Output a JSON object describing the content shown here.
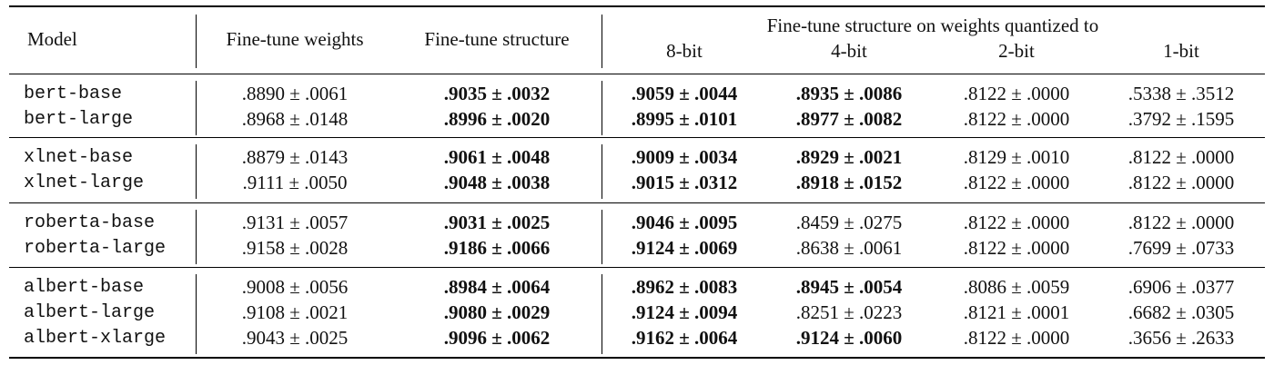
{
  "header": {
    "model": "Model",
    "finetune_weights": "Fine-tune weights",
    "finetune_structure": "Fine-tune structure",
    "quantized_group": "Fine-tune structure on weights quantized to",
    "bits": [
      "8-bit",
      "4-bit",
      "2-bit",
      "1-bit"
    ]
  },
  "groups": [
    [
      {
        "model": "bert-base",
        "w": ".8890 ± .0061",
        "s": ".9035 ± .0032",
        "q8": ".9059 ± .0044",
        "q4": ".8935 ± .0086",
        "q2": ".8122 ± .0000",
        "q1": ".5338 ± .3512",
        "bold": [
          "s",
          "q8",
          "q4"
        ]
      },
      {
        "model": "bert-large",
        "w": ".8968 ± .0148",
        "s": ".8996 ± .0020",
        "q8": ".8995 ± .0101",
        "q4": ".8977 ± .0082",
        "q2": ".8122 ± .0000",
        "q1": ".3792 ± .1595",
        "bold": [
          "s",
          "q8",
          "q4"
        ]
      }
    ],
    [
      {
        "model": "xlnet-base",
        "w": ".8879 ± .0143",
        "s": ".9061 ± .0048",
        "q8": ".9009 ± .0034",
        "q4": ".8929 ± .0021",
        "q2": ".8129 ± .0010",
        "q1": ".8122 ± .0000",
        "bold": [
          "s",
          "q8",
          "q4"
        ]
      },
      {
        "model": "xlnet-large",
        "w": ".9111 ± .0050",
        "s": ".9048 ± .0038",
        "q8": ".9015 ± .0312",
        "q4": ".8918 ± .0152",
        "q2": ".8122 ± .0000",
        "q1": ".8122 ± .0000",
        "bold": [
          "s",
          "q8",
          "q4"
        ]
      }
    ],
    [
      {
        "model": "roberta-base",
        "w": ".9131 ± .0057",
        "s": ".9031 ± .0025",
        "q8": ".9046 ± .0095",
        "q4": ".8459 ± .0275",
        "q2": ".8122 ± .0000",
        "q1": ".8122 ± .0000",
        "bold": [
          "s",
          "q8"
        ]
      },
      {
        "model": "roberta-large",
        "w": ".9158 ± .0028",
        "s": ".9186 ± .0066",
        "q8": ".9124 ± .0069",
        "q4": ".8638 ± .0061",
        "q2": ".8122 ± .0000",
        "q1": ".7699 ± .0733",
        "bold": [
          "s",
          "q8"
        ]
      }
    ],
    [
      {
        "model": "albert-base",
        "w": ".9008 ± .0056",
        "s": ".8984 ± .0064",
        "q8": ".8962 ± .0083",
        "q4": ".8945 ± .0054",
        "q2": ".8086 ± .0059",
        "q1": ".6906 ± .0377",
        "bold": [
          "s",
          "q8",
          "q4"
        ]
      },
      {
        "model": "albert-large",
        "w": ".9108 ± .0021",
        "s": ".9080 ± .0029",
        "q8": ".9124 ± .0094",
        "q4": ".8251 ± .0223",
        "q2": ".8121 ± .0001",
        "q1": ".6682 ± .0305",
        "bold": [
          "s",
          "q8"
        ]
      },
      {
        "model": "albert-xlarge",
        "w": ".9043 ± .0025",
        "s": ".9096 ± .0062",
        "q8": ".9162 ± .0064",
        "q4": ".9124 ± .0060",
        "q2": ".8122 ± .0000",
        "q1": ".3656 ± .2633",
        "bold": [
          "s",
          "q8",
          "q4"
        ]
      }
    ]
  ]
}
